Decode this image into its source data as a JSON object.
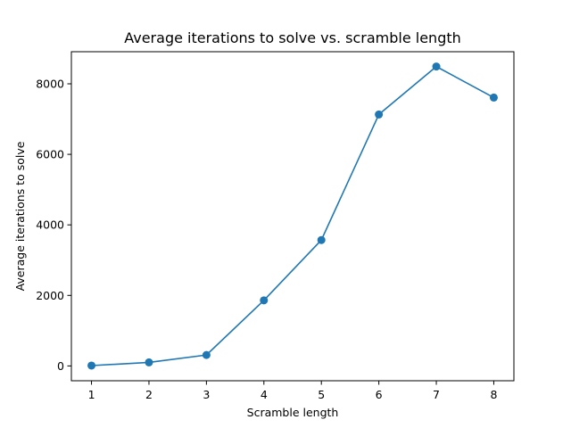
{
  "chart_data": {
    "type": "line",
    "title": "Average iterations to solve vs. scramble length",
    "xlabel": "Scramble length",
    "ylabel": "Average iterations to solve",
    "x": [
      1,
      2,
      3,
      4,
      5,
      6,
      7,
      8
    ],
    "series": [
      {
        "values": [
          10,
          100,
          310,
          1860,
          3570,
          7130,
          8490,
          7610
        ],
        "color": "#1f77b4",
        "marker": "circle"
      }
    ],
    "xlim": [
      0.65,
      8.35
    ],
    "ylim": [
      -420,
      8910
    ],
    "xticks": [
      1,
      2,
      3,
      4,
      5,
      6,
      7,
      8
    ],
    "yticks": [
      0,
      2000,
      4000,
      6000,
      8000
    ],
    "grid": false,
    "legend": "none"
  }
}
